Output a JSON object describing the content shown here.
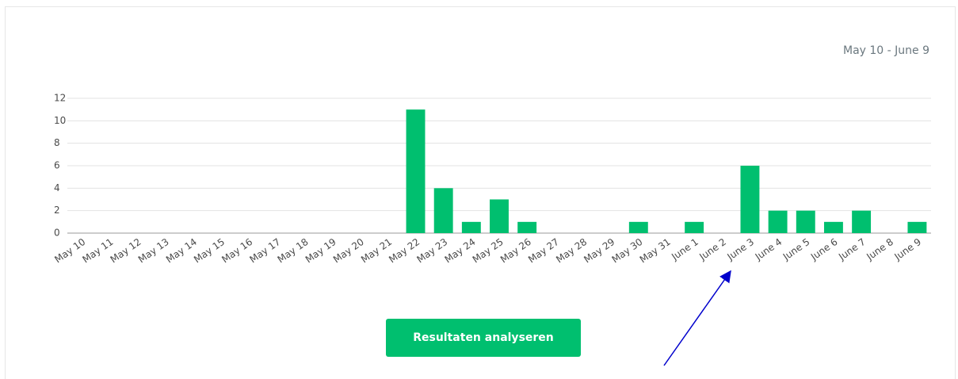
{
  "date_range": "May 10 - June 9",
  "button": "Resultaten analyseren",
  "chart_data": {
    "type": "bar",
    "categories": [
      "May 10",
      "May 11",
      "May 12",
      "May 13",
      "May 14",
      "May 15",
      "May 16",
      "May 17",
      "May 18",
      "May 19",
      "May 20",
      "May 21",
      "May 22",
      "May 23",
      "May 24",
      "May 25",
      "May 26",
      "May 27",
      "May 28",
      "May 29",
      "May 30",
      "May 31",
      "June 1",
      "June 2",
      "June 3",
      "June 4",
      "June 5",
      "June 6",
      "June 7",
      "June 8",
      "June 9"
    ],
    "values": [
      0,
      0,
      0,
      0,
      0,
      0,
      0,
      0,
      0,
      0,
      0,
      0,
      11,
      4,
      1,
      3,
      1,
      0,
      0,
      0,
      1,
      0,
      1,
      0,
      6,
      2,
      2,
      1,
      2,
      0,
      1
    ],
    "color": "#00bf6f",
    "ylim": [
      0,
      12
    ],
    "yticks": [
      0,
      2,
      4,
      6,
      8,
      10,
      12
    ],
    "grid": true
  }
}
